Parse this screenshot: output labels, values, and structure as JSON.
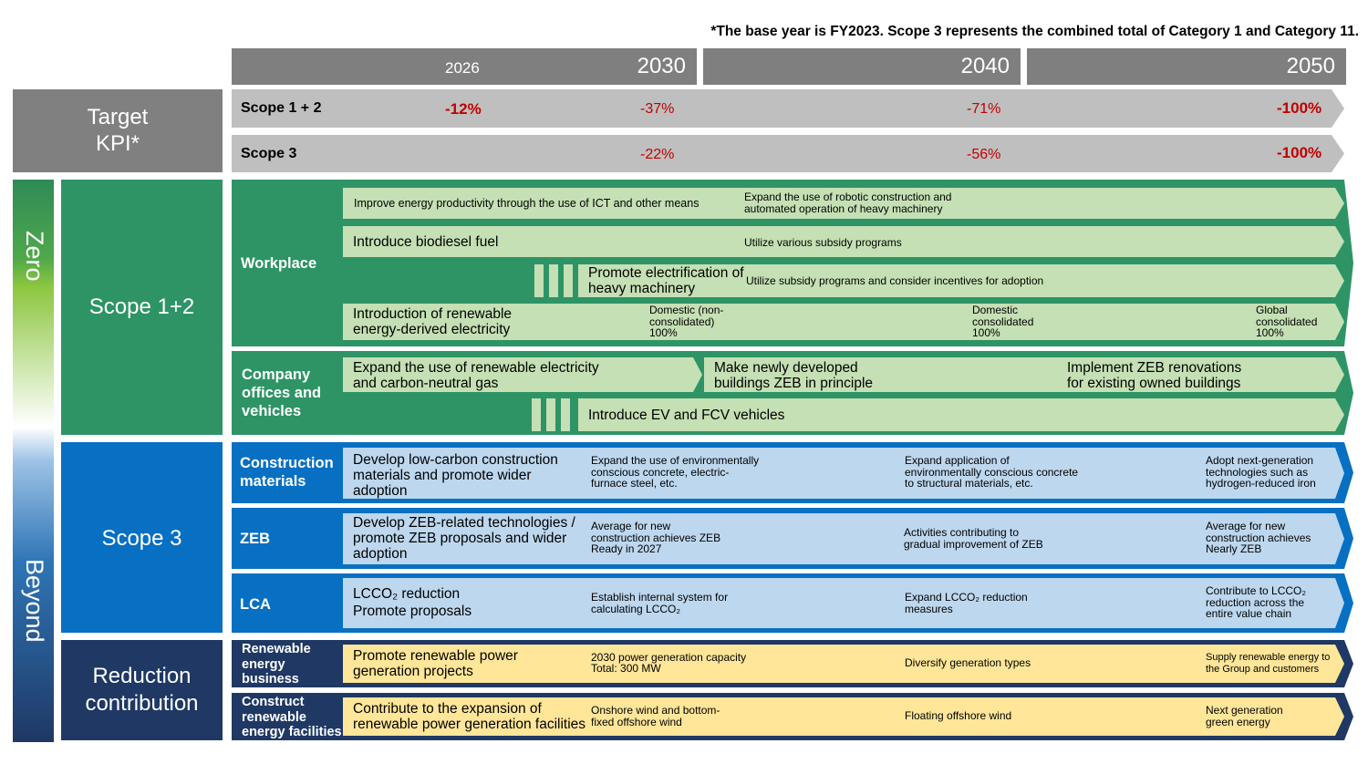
{
  "note": "*The base year is FY2023. Scope 3 represents the combined total of Category 1 and Category 11.",
  "years": [
    "2026",
    "2030",
    "2040",
    "2050"
  ],
  "kpi": {
    "title": "Target KPI*",
    "rows": [
      {
        "label": "Scope 1 + 2",
        "v2026": "-12%",
        "v2030": "-37%",
        "v2040": "-71%",
        "v2050": "-100%"
      },
      {
        "label": "Scope 3",
        "v2030": "-22%",
        "v2040": "-56%",
        "v2050": "-100%"
      }
    ]
  },
  "side": {
    "top": "Zero",
    "bottom": "Beyond"
  },
  "groups": {
    "scope12": "Scope 1+2",
    "scope3": "Scope 3",
    "reduction": "Reduction contribution"
  },
  "categories": {
    "workplace": "Workplace",
    "offices": "Company offices and vehicles",
    "construction": "Construction materials",
    "zeb": "ZEB",
    "lca": "LCA",
    "renewable_business": "Renewable energy business",
    "renewable_facilities": "Construct renewable energy facilities"
  },
  "workplace": {
    "r1a": "Improve energy productivity through the use of ICT and other means",
    "r1b": "Expand the use of robotic construction and automated operation of heavy machinery",
    "r2a": "Introduce biodiesel fuel",
    "r2b": "Utilize various subsidy programs",
    "r3a": "Promote electrification of heavy machinery",
    "r3b": "Utilize subsidy programs and consider incentives for adoption",
    "r4a": "Introduction of renewable energy-derived electricity",
    "r4b": "Domestic (non-consolidated) 100%",
    "r4c": "Domestic consolidated 100%",
    "r4d": "Global consolidated 100%"
  },
  "offices": {
    "r1a": "Expand the use of renewable electricity and carbon-neutral gas",
    "r1b": "Make newly developed buildings ZEB in principle",
    "r1c": "Implement ZEB renovations for existing owned buildings",
    "r2a": "Introduce EV and FCV vehicles"
  },
  "construction": {
    "a": "Develop low-carbon construction materials and promote wider adoption",
    "b": "Expand the use of environmentally conscious concrete, electric-furnace steel, etc.",
    "c": "Expand application of environmentally conscious concrete to structural materials, etc.",
    "d": "Adopt next-generation technologies such as hydrogen-reduced iron"
  },
  "zeb": {
    "a": "Develop ZEB-related technologies / promote ZEB proposals and wider adoption",
    "b": "Average for new construction achieves ZEB Ready in 2027",
    "c": "Activities contributing to gradual improvement of ZEB",
    "d": "Average for new construction achieves Nearly ZEB"
  },
  "lca": {
    "a1": "LCCO₂ reduction",
    "a2": "Promote proposals",
    "b": "Establish internal system for calculating LCCO₂",
    "c": "Expand LCCO₂ reduction measures",
    "d": "Contribute to LCCO₂ reduction across the entire value chain"
  },
  "renewable_business": {
    "a": "Promote renewable power generation projects",
    "b1": "2030 power generation capacity",
    "b2": "Total: 300 MW",
    "c": "Diversify generation types",
    "d": "Supply renewable energy to the Group and customers"
  },
  "renewable_facilities": {
    "a": "Contribute to the expansion of renewable power generation facilities",
    "b": "Onshore wind and bottom-fixed offshore wind",
    "c": "Floating offshore wind",
    "d": "Next generation green energy"
  },
  "colors": {
    "kpi_red": "#c00000",
    "green": "#2e9466",
    "blue": "#0870c2",
    "navy": "#1f3864",
    "light_green": "#c5e0b4",
    "light_blue": "#bdd7ee",
    "light_yellow": "#ffe699"
  }
}
